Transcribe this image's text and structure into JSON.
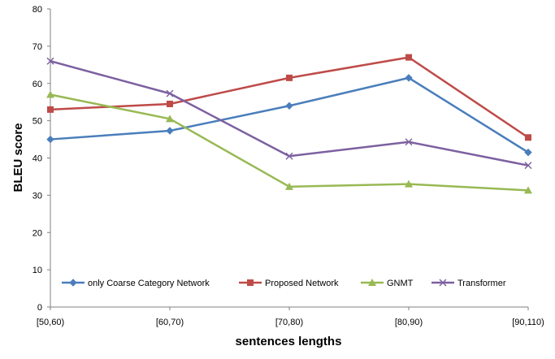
{
  "chart_data": {
    "type": "line",
    "title": "",
    "xlabel": "sentences lengths",
    "ylabel": "BLEU score",
    "categories": [
      "[50,60)",
      "[60,70)",
      "[70,80)",
      "[80,90)",
      "[90,110)"
    ],
    "ylim": [
      0,
      80
    ],
    "yticks": [
      "0",
      "10",
      "20",
      "30",
      "40",
      "50",
      "60",
      "70",
      "80"
    ],
    "grid": false,
    "legend_placement": "bottom-inside",
    "series": [
      {
        "name": "only Coarse Category Network",
        "color": "#4a7ebb",
        "marker": "diamond",
        "values": [
          45.0,
          47.3,
          54.0,
          61.5,
          41.5
        ]
      },
      {
        "name": "Proposed Network",
        "color": "#be4b48",
        "marker": "square",
        "values": [
          53.0,
          54.5,
          61.5,
          67.0,
          45.5
        ]
      },
      {
        "name": "GNMT",
        "color": "#98b954",
        "marker": "triangle",
        "values": [
          57.0,
          50.5,
          32.3,
          33.0,
          31.3
        ]
      },
      {
        "name": "Transformer",
        "color": "#7d60a0",
        "marker": "x",
        "values": [
          66.0,
          57.3,
          40.5,
          44.3,
          38.0
        ]
      }
    ]
  }
}
